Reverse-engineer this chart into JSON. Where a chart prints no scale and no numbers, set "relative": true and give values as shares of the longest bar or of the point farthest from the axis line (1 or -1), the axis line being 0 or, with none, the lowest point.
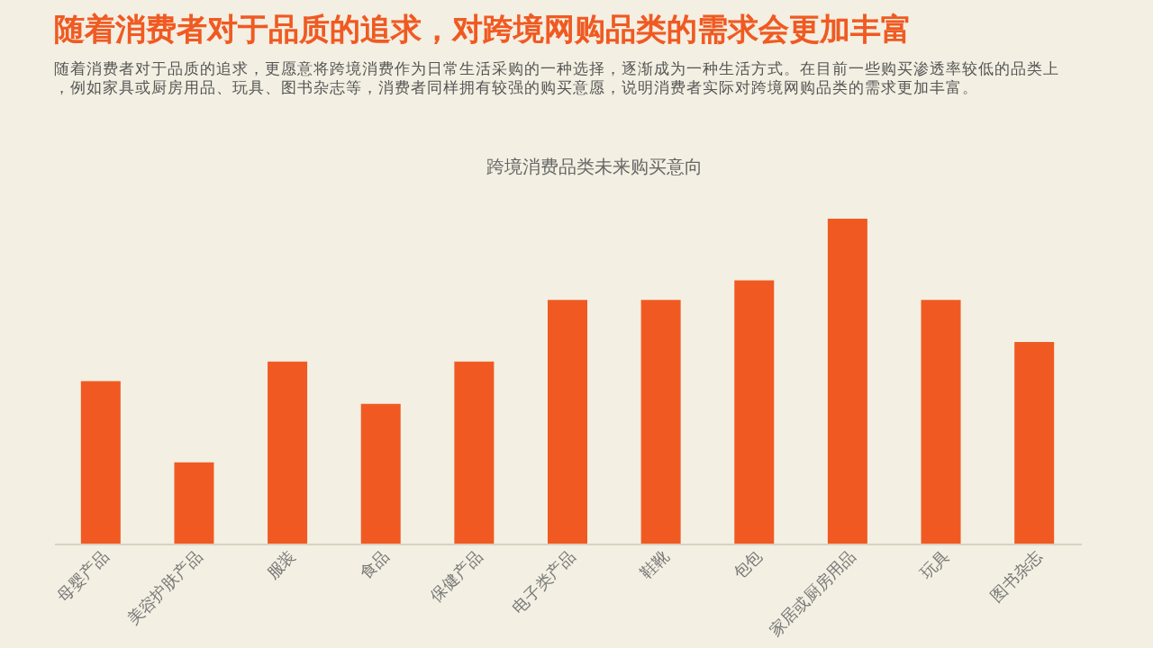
{
  "chart_data": {
    "type": "bar",
    "title": "随着消费者对于品质的追求，对跨境网购品类的需求会更加丰富",
    "subtitle": "随着消费者对于品质的追求，更愿意将跨境消费作为日常生活采购的一种选择，逐渐成为一种生活方式。在目前一些购买渗透率较低的品类上，例如家具或厨房用品、玩具、图书杂志等，消费者同样拥有较强的购买意愿，说明消费者实际对跨境网购品类的需求更加丰富。",
    "annotations": [
      "跨境消费品类未来购买意向"
    ],
    "categories": [
      "母婴产品",
      "美容护肤产品",
      "服装",
      "食品",
      "保健产品",
      "电子类产品",
      "鞋靴",
      "包包",
      "家居或厨房用品",
      "玩具",
      "图书杂志"
    ],
    "values": [
      0.5,
      0.25,
      0.56,
      0.43,
      0.56,
      0.75,
      0.75,
      0.81,
      1,
      0.75,
      0.62
    ],
    "color": "#f05a22",
    "relative": true,
    "grid": false
  }
}
